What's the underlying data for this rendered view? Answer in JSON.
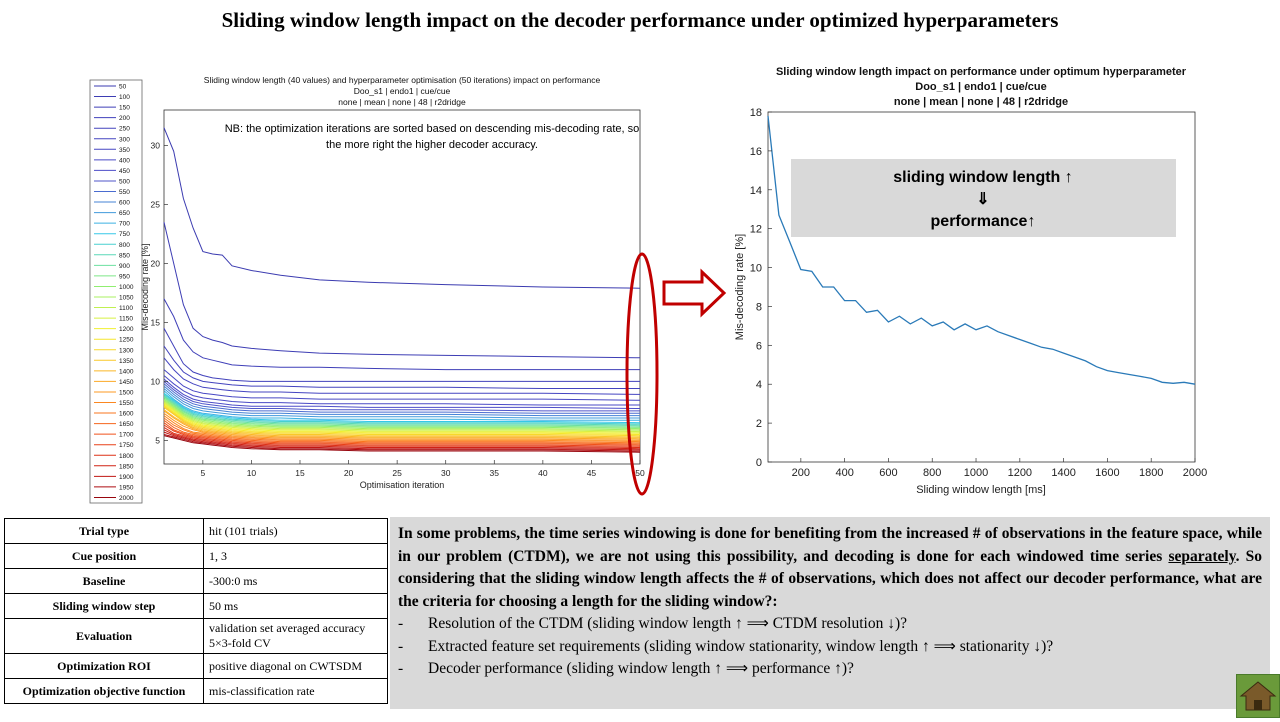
{
  "title": "Sliding window length impact on the decoder performance under optimized hyperparameters",
  "left_chart": {
    "title_lines": [
      "Sliding window length (40 values) and hyperparameter optimisation (50 iterations) impact on performance",
      "Doo_s1 | endo1 | cue/cue",
      "none | mean | none | 48 | r2dridge"
    ],
    "annotation_lines": [
      "NB: the optimization iterations are sorted based on descending mis-decoding rate, so",
      "the more right the higher decoder accuracy."
    ]
  },
  "right_chart": {
    "title_lines": [
      "Sliding window length impact on performance under optimum hyperparameter",
      "Doo_s1 | endo1 | cue/cue",
      "none | mean | none | 48 | r2dridge"
    ],
    "box_lines": [
      "sliding window length ↑",
      "⇓",
      "performance↑"
    ]
  },
  "chart_data": [
    {
      "type": "line",
      "xlabel": "Optimisation iteration",
      "ylabel": "Mis-decoding rate [%]",
      "xlim": [
        1,
        50
      ],
      "ylim": [
        3,
        33
      ],
      "xticks": [
        5,
        10,
        15,
        20,
        25,
        30,
        35,
        40,
        45,
        50
      ],
      "yticks": [
        5,
        10,
        15,
        20,
        25,
        30
      ],
      "x": [
        1,
        2,
        3,
        4,
        5,
        6,
        7,
        8,
        10,
        13,
        17,
        22,
        30,
        40,
        50
      ],
      "legend_placement": "left-outside",
      "series": [
        {
          "name": "50",
          "color": "#3b3bb0",
          "values": [
            31.5,
            29.5,
            25.5,
            23.0,
            21.0,
            20.8,
            20.7,
            19.8,
            19.4,
            19.0,
            18.6,
            18.4,
            18.2,
            18.0,
            17.9
          ]
        },
        {
          "name": "100",
          "color": "#3d3db4",
          "values": [
            23.5,
            20.0,
            16.5,
            14.5,
            13.8,
            13.5,
            13.3,
            13.0,
            12.8,
            12.6,
            12.4,
            12.3,
            12.2,
            12.1,
            12.0
          ]
        },
        {
          "name": "150",
          "color": "#3f3fb8",
          "values": [
            17.0,
            15.5,
            13.5,
            12.5,
            12.0,
            11.8,
            11.6,
            11.4,
            11.3,
            11.2,
            11.2,
            11.1,
            11.0,
            11.0,
            11.0
          ]
        },
        {
          "name": "200",
          "color": "#4141bb",
          "values": [
            14.5,
            13.0,
            11.5,
            10.8,
            10.5,
            10.3,
            10.2,
            10.1,
            10.0,
            10.0,
            10.0,
            10.0,
            10.0,
            10.0,
            10.0
          ]
        },
        {
          "name": "250",
          "color": "#4343be",
          "values": [
            13.0,
            11.8,
            10.8,
            10.3,
            10.0,
            9.9,
            9.8,
            9.7,
            9.6,
            9.6,
            9.5,
            9.5,
            9.5,
            9.4,
            9.4
          ]
        },
        {
          "name": "300",
          "color": "#4545c1",
          "values": [
            12.0,
            11.0,
            10.2,
            9.8,
            9.5,
            9.4,
            9.3,
            9.2,
            9.1,
            9.1,
            9.0,
            9.0,
            9.0,
            9.0,
            8.9
          ]
        },
        {
          "name": "350",
          "color": "#4747c4",
          "values": [
            11.0,
            10.3,
            9.6,
            9.2,
            9.0,
            8.9,
            8.8,
            8.7,
            8.6,
            8.6,
            8.5,
            8.5,
            8.5,
            8.5,
            8.4
          ]
        },
        {
          "name": "400",
          "color": "#4a4ac6",
          "values": [
            10.5,
            9.8,
            9.2,
            8.8,
            8.6,
            8.5,
            8.4,
            8.3,
            8.2,
            8.2,
            8.1,
            8.1,
            8.1,
            8.0,
            8.0
          ]
        },
        {
          "name": "450",
          "color": "#4d4dc8",
          "values": [
            10.2,
            9.5,
            8.9,
            8.5,
            8.3,
            8.2,
            8.1,
            8.0,
            7.9,
            7.9,
            7.9,
            7.8,
            7.8,
            7.8,
            7.7
          ]
        },
        {
          "name": "500",
          "color": "#4f55ca",
          "values": [
            10.0,
            9.3,
            8.7,
            8.3,
            8.1,
            8.0,
            7.9,
            7.8,
            7.7,
            7.7,
            7.6,
            7.6,
            7.6,
            7.5,
            7.5
          ]
        },
        {
          "name": "550",
          "color": "#4a6cd0",
          "values": [
            9.8,
            9.1,
            8.5,
            8.1,
            7.9,
            7.8,
            7.7,
            7.6,
            7.5,
            7.5,
            7.4,
            7.4,
            7.4,
            7.3,
            7.3
          ]
        },
        {
          "name": "600",
          "color": "#4583d6",
          "values": [
            9.6,
            8.9,
            8.3,
            7.9,
            7.7,
            7.6,
            7.5,
            7.4,
            7.3,
            7.3,
            7.2,
            7.2,
            7.2,
            7.1,
            7.1
          ]
        },
        {
          "name": "650",
          "color": "#409adc",
          "values": [
            9.4,
            8.7,
            8.1,
            7.7,
            7.5,
            7.4,
            7.3,
            7.2,
            7.1,
            7.1,
            7.0,
            7.0,
            7.0,
            6.9,
            6.9
          ]
        },
        {
          "name": "700",
          "color": "#3bb1e2",
          "values": [
            9.2,
            8.5,
            7.9,
            7.5,
            7.3,
            7.2,
            7.1,
            7.0,
            6.9,
            6.9,
            6.8,
            6.8,
            6.8,
            6.7,
            6.7
          ]
        },
        {
          "name": "750",
          "color": "#36c8e8",
          "values": [
            9.0,
            8.4,
            7.8,
            7.4,
            7.2,
            7.1,
            7.0,
            6.9,
            6.8,
            6.7,
            6.7,
            6.6,
            6.6,
            6.6,
            6.5
          ]
        },
        {
          "name": "800",
          "color": "#48d0d0",
          "values": [
            8.9,
            8.3,
            7.7,
            7.3,
            7.1,
            7.0,
            6.9,
            6.8,
            6.7,
            6.6,
            6.6,
            6.5,
            6.5,
            6.5,
            6.4
          ]
        },
        {
          "name": "850",
          "color": "#5ad8b8",
          "values": [
            8.8,
            8.2,
            7.6,
            7.2,
            7.0,
            6.9,
            6.8,
            6.7,
            6.6,
            6.5,
            6.5,
            6.4,
            6.4,
            6.4,
            6.3
          ]
        },
        {
          "name": "900",
          "color": "#6ce0a0",
          "values": [
            8.7,
            8.1,
            7.5,
            7.1,
            6.9,
            6.8,
            6.7,
            6.6,
            6.5,
            6.4,
            6.4,
            6.3,
            6.3,
            6.3,
            6.2
          ]
        },
        {
          "name": "950",
          "color": "#7ee888",
          "values": [
            8.6,
            8.0,
            7.4,
            7.0,
            6.8,
            6.7,
            6.6,
            6.5,
            6.4,
            6.3,
            6.3,
            6.2,
            6.2,
            6.2,
            6.1
          ]
        },
        {
          "name": "1000",
          "color": "#90ee70",
          "values": [
            8.5,
            7.9,
            7.3,
            6.9,
            6.7,
            6.6,
            6.5,
            6.4,
            6.3,
            6.2,
            6.2,
            6.1,
            6.1,
            6.1,
            6.0
          ]
        },
        {
          "name": "1050",
          "color": "#a8f060",
          "values": [
            8.4,
            7.8,
            7.2,
            6.8,
            6.6,
            6.5,
            6.4,
            6.3,
            6.2,
            6.1,
            6.1,
            6.0,
            6.0,
            6.0,
            5.9
          ]
        },
        {
          "name": "1100",
          "color": "#c0f050",
          "values": [
            8.3,
            7.7,
            7.1,
            6.7,
            6.5,
            6.4,
            6.3,
            6.2,
            6.1,
            6.0,
            6.0,
            5.9,
            5.9,
            5.9,
            5.8
          ]
        },
        {
          "name": "1150",
          "color": "#d8f040",
          "values": [
            8.2,
            7.6,
            7.0,
            6.6,
            6.4,
            6.3,
            6.2,
            6.1,
            6.0,
            5.9,
            5.9,
            5.8,
            5.8,
            5.8,
            5.7
          ]
        },
        {
          "name": "1200",
          "color": "#f0f030",
          "values": [
            8.1,
            7.5,
            6.9,
            6.5,
            6.3,
            6.2,
            6.1,
            6.0,
            5.9,
            5.8,
            5.8,
            5.7,
            5.7,
            5.7,
            5.6
          ]
        },
        {
          "name": "1250",
          "color": "#f5e62d",
          "values": [
            8.0,
            7.4,
            6.8,
            6.4,
            6.2,
            6.1,
            6.0,
            5.9,
            5.8,
            5.7,
            5.7,
            5.6,
            5.6,
            5.6,
            5.5
          ]
        },
        {
          "name": "1300",
          "color": "#f8d82a",
          "values": [
            7.9,
            7.3,
            6.7,
            6.3,
            6.1,
            6.0,
            5.9,
            5.8,
            5.7,
            5.6,
            5.6,
            5.5,
            5.5,
            5.5,
            5.4
          ]
        },
        {
          "name": "1350",
          "color": "#fac828",
          "values": [
            7.8,
            7.2,
            6.6,
            6.2,
            6.0,
            5.9,
            5.8,
            5.7,
            5.6,
            5.5,
            5.5,
            5.4,
            5.4,
            5.4,
            5.3
          ]
        },
        {
          "name": "1400",
          "color": "#fbb826",
          "values": [
            7.6,
            7.0,
            6.5,
            6.1,
            5.9,
            5.8,
            5.7,
            5.6,
            5.5,
            5.4,
            5.4,
            5.3,
            5.3,
            5.3,
            5.2
          ]
        },
        {
          "name": "1450",
          "color": "#fca824",
          "values": [
            7.5,
            6.9,
            6.4,
            6.0,
            5.8,
            5.7,
            5.6,
            5.5,
            5.4,
            5.3,
            5.3,
            5.2,
            5.2,
            5.2,
            5.1
          ]
        },
        {
          "name": "1500",
          "color": "#fc9822",
          "values": [
            7.3,
            6.7,
            6.2,
            5.9,
            5.7,
            5.6,
            5.5,
            5.4,
            5.3,
            5.2,
            5.2,
            5.1,
            5.1,
            5.1,
            5.0
          ]
        },
        {
          "name": "1550",
          "color": "#fb8720",
          "values": [
            7.1,
            6.5,
            6.0,
            5.7,
            5.6,
            5.5,
            5.4,
            5.3,
            5.2,
            5.1,
            5.1,
            5.0,
            5.0,
            5.0,
            4.9
          ]
        },
        {
          "name": "1600",
          "color": "#f9761e",
          "values": [
            6.9,
            6.3,
            5.9,
            5.6,
            5.5,
            5.4,
            5.3,
            5.2,
            5.1,
            5.0,
            5.0,
            4.9,
            4.9,
            4.9,
            4.8
          ]
        },
        {
          "name": "1650",
          "color": "#f6641c",
          "values": [
            6.7,
            6.1,
            5.7,
            5.5,
            5.4,
            5.3,
            5.2,
            5.1,
            5.0,
            4.9,
            4.9,
            4.8,
            4.8,
            4.8,
            4.7
          ]
        },
        {
          "name": "1700",
          "color": "#f0521a",
          "values": [
            6.5,
            5.9,
            5.6,
            5.4,
            5.3,
            5.2,
            5.1,
            5.0,
            4.9,
            4.8,
            4.8,
            4.7,
            4.7,
            4.7,
            4.6
          ]
        },
        {
          "name": "1750",
          "color": "#e84018",
          "values": [
            6.3,
            5.8,
            5.5,
            5.3,
            5.2,
            5.1,
            5.0,
            4.9,
            4.8,
            4.7,
            4.7,
            4.6,
            4.6,
            4.6,
            4.5
          ]
        },
        {
          "name": "1800",
          "color": "#dd3016",
          "values": [
            6.1,
            5.6,
            5.4,
            5.2,
            5.1,
            5.0,
            4.9,
            4.8,
            4.7,
            4.6,
            4.6,
            4.5,
            4.5,
            4.5,
            4.4
          ]
        },
        {
          "name": "1850",
          "color": "#d02214",
          "values": [
            5.9,
            5.5,
            5.3,
            5.1,
            5.0,
            4.9,
            4.8,
            4.7,
            4.6,
            4.5,
            4.5,
            4.4,
            4.4,
            4.4,
            4.3
          ]
        },
        {
          "name": "1900",
          "color": "#c01612",
          "values": [
            5.7,
            5.4,
            5.2,
            5.0,
            4.9,
            4.8,
            4.7,
            4.6,
            4.5,
            4.4,
            4.4,
            4.3,
            4.3,
            4.3,
            4.2
          ]
        },
        {
          "name": "1950",
          "color": "#ae0c10",
          "values": [
            5.5,
            5.3,
            5.1,
            4.9,
            4.8,
            4.7,
            4.6,
            4.5,
            4.4,
            4.3,
            4.3,
            4.2,
            4.2,
            4.2,
            4.1
          ]
        },
        {
          "name": "2000",
          "color": "#98060e",
          "values": [
            5.4,
            5.2,
            5.0,
            4.8,
            4.7,
            4.6,
            4.5,
            4.4,
            4.3,
            4.2,
            4.2,
            4.1,
            4.1,
            4.1,
            4.0
          ]
        }
      ]
    },
    {
      "type": "line",
      "xlabel": "Sliding window length [ms]",
      "ylabel": "Mis-decoding rate [%]",
      "xlim": [
        50,
        2000
      ],
      "ylim": [
        0,
        18
      ],
      "xticks": [
        200,
        400,
        600,
        800,
        1000,
        1200,
        1400,
        1600,
        1800,
        2000
      ],
      "yticks": [
        0,
        2,
        4,
        6,
        8,
        10,
        12,
        14,
        16,
        18
      ],
      "x": [
        50,
        100,
        150,
        200,
        250,
        300,
        350,
        400,
        450,
        500,
        550,
        600,
        650,
        700,
        750,
        800,
        850,
        900,
        950,
        1000,
        1050,
        1100,
        1150,
        1200,
        1250,
        1300,
        1350,
        1400,
        1450,
        1500,
        1550,
        1600,
        1650,
        1700,
        1750,
        1800,
        1850,
        1900,
        1950,
        2000
      ],
      "series": [
        {
          "color": "#2a7ab8",
          "values": [
            17.8,
            12.7,
            11.3,
            9.9,
            9.8,
            9.0,
            9.0,
            8.3,
            8.3,
            7.7,
            7.8,
            7.2,
            7.5,
            7.1,
            7.4,
            7.0,
            7.2,
            6.8,
            7.1,
            6.8,
            7.0,
            6.7,
            6.5,
            6.3,
            6.1,
            5.9,
            5.8,
            5.6,
            5.4,
            5.2,
            4.9,
            4.7,
            4.6,
            4.5,
            4.4,
            4.3,
            4.1,
            4.05,
            4.1,
            4.0
          ]
        }
      ]
    }
  ],
  "params_table": [
    {
      "key": "Trial type",
      "value": "hit (101  trials)"
    },
    {
      "key": "Cue position",
      "value": "1, 3"
    },
    {
      "key": "Baseline",
      "value": "-300:0  ms"
    },
    {
      "key": "Sliding window  step",
      "value": "50 ms"
    },
    {
      "key": "Evaluation",
      "value": "validation set averaged accuracy 5×3-fold  CV"
    },
    {
      "key": "Optimization  ROI",
      "value": "positive diagonal on CWTSDM"
    },
    {
      "key": "Optimization  objective  function",
      "value": "mis-classification rate"
    }
  ],
  "note": {
    "paragraph": {
      "before": "In some problems, the time series windowing is done for benefiting from the increased # of observations in the feature space, while in our problem (CTDM), we are not using this possibility, and decoding is done for each windowed time series ",
      "underlined": "separately",
      "after": ". So considering that the sliding window length affects the # of observations, which does not affect our decoder performance, what are the criteria for choosing a length for the sliding window?:"
    },
    "bullets": [
      "Resolution of the CTDM (sliding  window length ↑ ⟹ CTDM resolution ↓)?",
      "Extracted feature set requirements (sliding window stationarity, window length ↑ ⟹ stationarity ↓)?",
      "Decoder performance (sliding window length ↑ ⟹ performance ↑)?"
    ],
    "bullet_marker": "-"
  },
  "home_icon": "home-icon",
  "colors": {
    "highlight_ellipse": "#c00000",
    "arrow": "#c00000",
    "note_bg": "#d9d9d9",
    "box_bg": "#d9d9d9",
    "home_bg": "#6a9a3a"
  }
}
